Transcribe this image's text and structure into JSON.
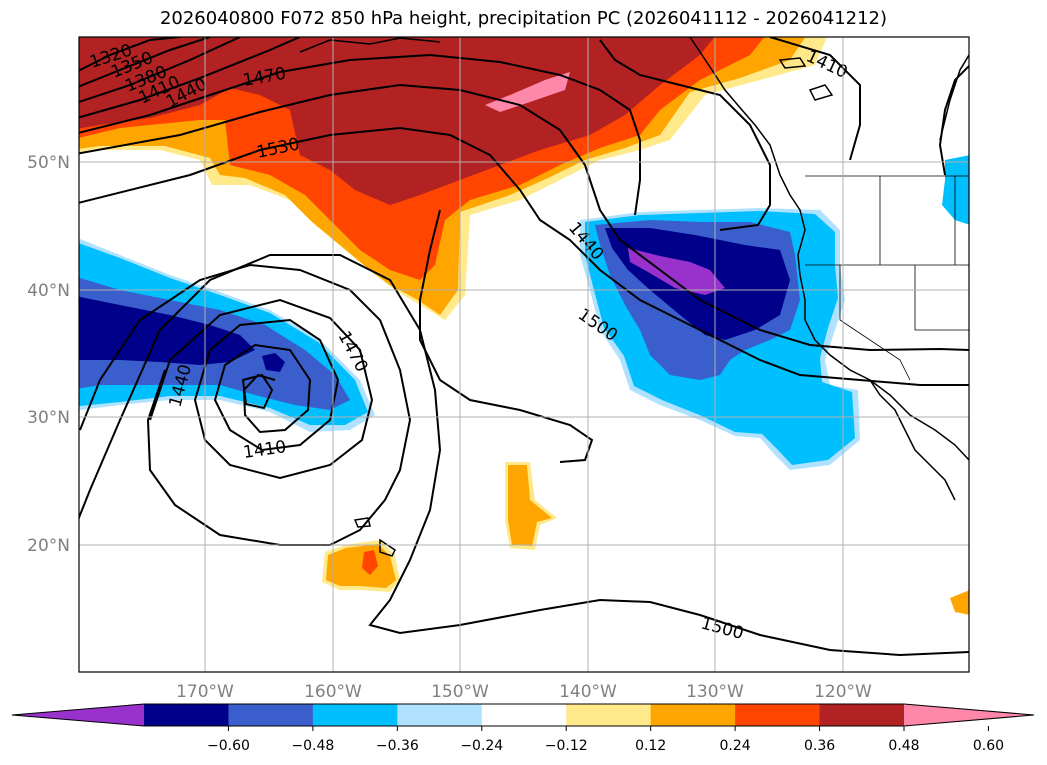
{
  "title": "2026040800 F072 850 hPa height, precipitation PC (2026041112 - 2026041212)",
  "map": {
    "lon_labels": [
      "170°W",
      "160°W",
      "150°W",
      "140°W",
      "130°W",
      "120°W"
    ],
    "lat_labels": [
      "50°N",
      "40°N",
      "30°N",
      "20°N"
    ],
    "contour_labels": [
      "1320",
      "1350",
      "1380",
      "1410",
      "1440",
      "1470",
      "1530",
      "1410",
      "1440",
      "1500",
      "1470",
      "1440",
      "1410",
      "1500"
    ]
  },
  "colorbar": {
    "ticks": [
      "−0.60",
      "−0.48",
      "−0.36",
      "−0.24",
      "−0.12",
      "0.12",
      "0.24",
      "0.36",
      "0.48",
      "0.60"
    ],
    "colors": [
      "#9932cc",
      "#00008b",
      "#3a5fcd",
      "#00bfff",
      "#b0e2ff",
      "#ffffff",
      "#ffe98a",
      "#ffa500",
      "#ff4500",
      "#b22222",
      "#ff88aa"
    ]
  }
}
